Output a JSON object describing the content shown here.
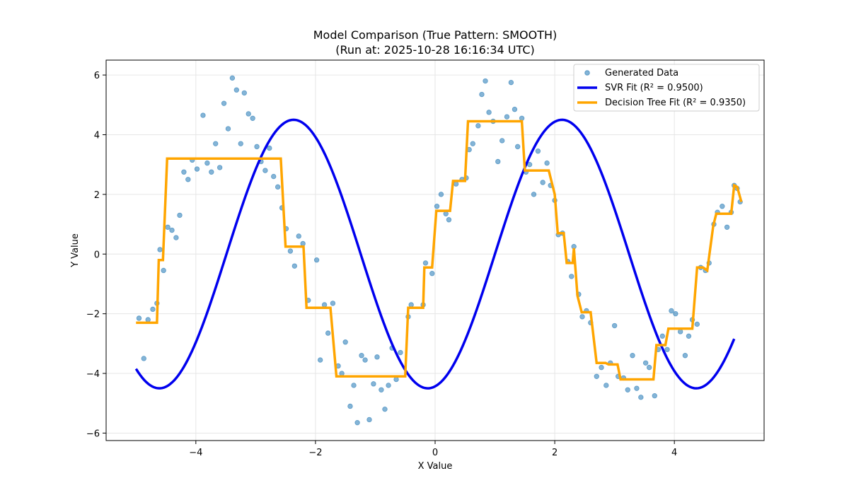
{
  "chart_data": {
    "type": "scatter",
    "title": "Model Comparison (True Pattern: SMOOTH)",
    "subtitle": "(Run at: 2025-10-28 16:16:34 UTC)",
    "xlabel": "X Value",
    "ylabel": "Y Value",
    "xlim": [
      -5.5,
      5.5
    ],
    "ylim": [
      -6.25,
      6.5
    ],
    "xticks": [
      -4,
      -2,
      0,
      2,
      4
    ],
    "yticks": [
      -6,
      -4,
      -2,
      0,
      2,
      4,
      6
    ],
    "grid": true,
    "legend_position": "top-right",
    "colors": {
      "scatter": "#1f77b4",
      "svr": "#0000ee",
      "tree": "#ffa500",
      "grid": "#e6e6e6",
      "axes": "#000000"
    },
    "series": [
      {
        "name": "Generated Data",
        "kind": "scatter",
        "points": [
          [
            -4.95,
            -2.15
          ],
          [
            -4.87,
            -3.5
          ],
          [
            -4.8,
            -2.2
          ],
          [
            -4.72,
            -1.85
          ],
          [
            -4.65,
            -1.65
          ],
          [
            -4.6,
            0.15
          ],
          [
            -4.54,
            -0.55
          ],
          [
            -4.47,
            0.9
          ],
          [
            -4.4,
            0.8
          ],
          [
            -4.33,
            0.55
          ],
          [
            -4.27,
            1.3
          ],
          [
            -4.2,
            2.75
          ],
          [
            -4.13,
            2.5
          ],
          [
            -4.06,
            3.15
          ],
          [
            -3.98,
            2.85
          ],
          [
            -3.88,
            4.65
          ],
          [
            -3.81,
            3.05
          ],
          [
            -3.74,
            2.75
          ],
          [
            -3.67,
            3.7
          ],
          [
            -3.6,
            2.9
          ],
          [
            -3.53,
            5.05
          ],
          [
            -3.46,
            4.2
          ],
          [
            -3.39,
            5.9
          ],
          [
            -3.32,
            5.5
          ],
          [
            -3.25,
            3.7
          ],
          [
            -3.19,
            5.4
          ],
          [
            -3.12,
            4.7
          ],
          [
            -3.05,
            4.55
          ],
          [
            -2.98,
            3.6
          ],
          [
            -2.91,
            3.1
          ],
          [
            -2.84,
            2.8
          ],
          [
            -2.77,
            3.55
          ],
          [
            -2.7,
            2.6
          ],
          [
            -2.63,
            2.25
          ],
          [
            -2.56,
            1.55
          ],
          [
            -2.49,
            0.85
          ],
          [
            -2.42,
            0.1
          ],
          [
            -2.35,
            -0.4
          ],
          [
            -2.28,
            0.6
          ],
          [
            -2.21,
            0.35
          ],
          [
            -2.12,
            -1.55
          ],
          [
            -1.98,
            -0.2
          ],
          [
            -1.92,
            -3.55
          ],
          [
            -1.85,
            -1.7
          ],
          [
            -1.79,
            -2.65
          ],
          [
            -1.71,
            -1.65
          ],
          [
            -1.62,
            -3.75
          ],
          [
            -1.56,
            -4.0
          ],
          [
            -1.5,
            -2.95
          ],
          [
            -1.42,
            -5.1
          ],
          [
            -1.36,
            -4.4
          ],
          [
            -1.3,
            -5.65
          ],
          [
            -1.23,
            -3.4
          ],
          [
            -1.17,
            -3.55
          ],
          [
            -1.1,
            -5.55
          ],
          [
            -1.03,
            -4.35
          ],
          [
            -0.97,
            -3.45
          ],
          [
            -0.9,
            -4.55
          ],
          [
            -0.84,
            -5.2
          ],
          [
            -0.78,
            -4.4
          ],
          [
            -0.72,
            -3.15
          ],
          [
            -0.65,
            -4.2
          ],
          [
            -0.58,
            -3.3
          ],
          [
            -0.45,
            -2.1
          ],
          [
            -0.4,
            -1.7
          ],
          [
            -0.2,
            -1.7
          ],
          [
            -0.16,
            -0.3
          ],
          [
            -0.05,
            -0.65
          ],
          [
            0.03,
            1.6
          ],
          [
            0.1,
            2.0
          ],
          [
            0.18,
            1.35
          ],
          [
            0.23,
            1.15
          ],
          [
            0.35,
            2.35
          ],
          [
            0.45,
            2.5
          ],
          [
            0.52,
            2.55
          ],
          [
            0.57,
            3.5
          ],
          [
            0.63,
            3.7
          ],
          [
            0.72,
            4.3
          ],
          [
            0.78,
            5.35
          ],
          [
            0.84,
            5.8
          ],
          [
            0.9,
            4.75
          ],
          [
            0.97,
            4.45
          ],
          [
            1.05,
            3.1
          ],
          [
            1.12,
            3.8
          ],
          [
            1.2,
            4.6
          ],
          [
            1.27,
            5.75
          ],
          [
            1.33,
            4.85
          ],
          [
            1.38,
            3.6
          ],
          [
            1.45,
            4.55
          ],
          [
            1.52,
            2.75
          ],
          [
            1.58,
            3.0
          ],
          [
            1.65,
            2.0
          ],
          [
            1.72,
            3.45
          ],
          [
            1.8,
            2.4
          ],
          [
            1.87,
            3.05
          ],
          [
            1.93,
            2.3
          ],
          [
            2.0,
            1.8
          ],
          [
            2.06,
            0.65
          ],
          [
            2.13,
            0.7
          ],
          [
            2.22,
            -0.25
          ],
          [
            2.28,
            -0.75
          ],
          [
            2.32,
            0.25
          ],
          [
            2.4,
            -1.35
          ],
          [
            2.46,
            -2.1
          ],
          [
            2.53,
            -1.9
          ],
          [
            2.6,
            -2.3
          ],
          [
            2.7,
            -4.1
          ],
          [
            2.78,
            -3.8
          ],
          [
            2.86,
            -4.4
          ],
          [
            2.93,
            -3.65
          ],
          [
            3.0,
            -2.4
          ],
          [
            3.06,
            -4.1
          ],
          [
            3.15,
            -4.15
          ],
          [
            3.22,
            -4.55
          ],
          [
            3.3,
            -3.4
          ],
          [
            3.37,
            -4.5
          ],
          [
            3.44,
            -4.8
          ],
          [
            3.52,
            -3.65
          ],
          [
            3.58,
            -3.8
          ],
          [
            3.67,
            -4.75
          ],
          [
            3.73,
            -3.2
          ],
          [
            3.8,
            -2.75
          ],
          [
            3.88,
            -3.2
          ],
          [
            3.95,
            -1.9
          ],
          [
            4.02,
            -2.0
          ],
          [
            4.1,
            -2.6
          ],
          [
            4.18,
            -3.4
          ],
          [
            4.24,
            -2.75
          ],
          [
            4.3,
            -2.2
          ],
          [
            4.38,
            -2.35
          ],
          [
            4.44,
            -0.45
          ],
          [
            4.52,
            -0.55
          ],
          [
            4.58,
            -0.3
          ],
          [
            4.66,
            1.0
          ],
          [
            4.72,
            1.4
          ],
          [
            4.8,
            1.6
          ],
          [
            4.88,
            0.9
          ],
          [
            4.95,
            1.4
          ],
          [
            5.0,
            2.3
          ],
          [
            5.05,
            2.2
          ],
          [
            5.1,
            1.75
          ]
        ]
      },
      {
        "name": "SVR Fit (R² = 0.9500)",
        "kind": "line",
        "x_range": [
          -5.0,
          5.0
        ],
        "model": "A*sin(w*x + phi) + B",
        "params": {
          "A": 4.5,
          "w": 1.4,
          "phi": -1.4,
          "B": 0.0
        }
      },
      {
        "name": "Decision Tree Fit (R² = 0.9350)",
        "kind": "step",
        "points": [
          [
            -5.0,
            -2.3
          ],
          [
            -4.65,
            -2.3
          ],
          [
            -4.62,
            -0.2
          ],
          [
            -4.55,
            -0.2
          ],
          [
            -4.48,
            3.2
          ],
          [
            -2.58,
            3.2
          ],
          [
            -2.5,
            0.25
          ],
          [
            -2.2,
            0.25
          ],
          [
            -2.15,
            -1.8
          ],
          [
            -1.75,
            -1.8
          ],
          [
            -1.65,
            -4.1
          ],
          [
            -0.5,
            -4.1
          ],
          [
            -0.45,
            -1.8
          ],
          [
            -0.2,
            -1.8
          ],
          [
            -0.18,
            -0.45
          ],
          [
            -0.05,
            -0.45
          ],
          [
            0.02,
            1.45
          ],
          [
            0.25,
            1.45
          ],
          [
            0.3,
            2.45
          ],
          [
            0.5,
            2.45
          ],
          [
            0.55,
            4.45
          ],
          [
            1.45,
            4.45
          ],
          [
            1.5,
            2.8
          ],
          [
            1.9,
            2.8
          ],
          [
            2.0,
            2.0
          ],
          [
            2.05,
            0.7
          ],
          [
            2.15,
            0.7
          ],
          [
            2.2,
            -0.3
          ],
          [
            2.3,
            -0.3
          ],
          [
            2.32,
            0.2
          ],
          [
            2.38,
            -1.4
          ],
          [
            2.45,
            -1.95
          ],
          [
            2.6,
            -1.95
          ],
          [
            2.7,
            -3.65
          ],
          [
            2.85,
            -3.65
          ],
          [
            2.9,
            -3.7
          ],
          [
            3.05,
            -3.7
          ],
          [
            3.1,
            -4.2
          ],
          [
            3.65,
            -4.2
          ],
          [
            3.7,
            -3.05
          ],
          [
            3.85,
            -3.05
          ],
          [
            3.9,
            -2.5
          ],
          [
            4.3,
            -2.5
          ],
          [
            4.38,
            -0.45
          ],
          [
            4.48,
            -0.45
          ],
          [
            4.55,
            -0.55
          ],
          [
            4.65,
            0.95
          ],
          [
            4.7,
            1.35
          ],
          [
            4.95,
            1.35
          ],
          [
            5.0,
            2.3
          ],
          [
            5.05,
            2.25
          ],
          [
            5.12,
            1.75
          ]
        ]
      }
    ]
  }
}
